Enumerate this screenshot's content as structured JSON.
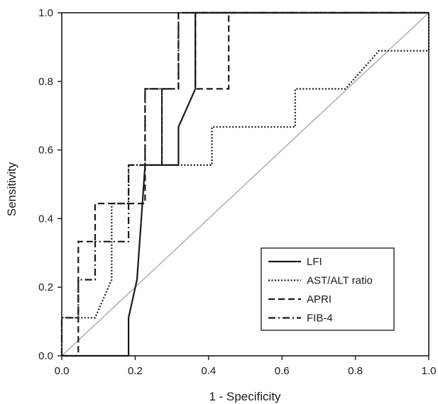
{
  "chart_data": {
    "type": "line",
    "title": "",
    "xlabel": "1 - Specificity",
    "ylabel": "Sensitivity",
    "xlim": [
      0,
      1
    ],
    "ylim": [
      0,
      1
    ],
    "xticks": [
      "0.0",
      "0.2",
      "0.4",
      "0.6",
      "0.8",
      "1.0"
    ],
    "yticks": [
      "0.0",
      "0.2",
      "0.4",
      "0.6",
      "0.8",
      "1.0"
    ],
    "grid": false,
    "legend_position": "bottom-right",
    "reference_line": {
      "from": [
        0,
        0
      ],
      "to": [
        1,
        1
      ],
      "color": "#aaaaaa"
    },
    "series": [
      {
        "name": "LFI",
        "style": "solid",
        "color": "#1a1a1a",
        "points": [
          [
            0,
            0
          ],
          [
            0.182,
            0
          ],
          [
            0.182,
            0.111
          ],
          [
            0.205,
            0.222
          ],
          [
            0.227,
            0.556
          ],
          [
            0.318,
            0.556
          ],
          [
            0.318,
            0.667
          ],
          [
            0.364,
            0.778
          ],
          [
            0.364,
            1
          ],
          [
            1,
            1
          ]
        ]
      },
      {
        "name": "AST/ALT ratio",
        "style": "dotted",
        "color": "#1a1a1a",
        "points": [
          [
            0,
            0
          ],
          [
            0,
            0.111
          ],
          [
            0.091,
            0.111
          ],
          [
            0.136,
            0.222
          ],
          [
            0.136,
            0.444
          ],
          [
            0.182,
            0.444
          ],
          [
            0.182,
            0.556
          ],
          [
            0.364,
            0.556
          ],
          [
            0.409,
            0.556
          ],
          [
            0.409,
            0.667
          ],
          [
            0.636,
            0.667
          ],
          [
            0.636,
            0.778
          ],
          [
            0.773,
            0.778
          ],
          [
            0.864,
            0.889
          ],
          [
            1,
            0.889
          ],
          [
            1,
            1
          ]
        ]
      },
      {
        "name": "APRI",
        "style": "dashed",
        "color": "#1a1a1a",
        "points": [
          [
            0,
            0
          ],
          [
            0.045,
            0
          ],
          [
            0.045,
            0.333
          ],
          [
            0.091,
            0.333
          ],
          [
            0.091,
            0.444
          ],
          [
            0.227,
            0.444
          ],
          [
            0.227,
            0.556
          ],
          [
            0.227,
            0.778
          ],
          [
            0.273,
            0.778
          ],
          [
            0.273,
            0.556
          ],
          [
            0.273,
            0.778
          ],
          [
            0.318,
            0.778
          ],
          [
            0.318,
            1
          ],
          [
            0.455,
            1
          ],
          [
            0.455,
            0.778
          ],
          [
            0.364,
            0.778
          ],
          [
            0.364,
            1
          ],
          [
            1,
            1
          ]
        ]
      },
      {
        "name": "FIB-4",
        "style": "dashdot",
        "color": "#1a1a1a",
        "points": [
          [
            0,
            0
          ],
          [
            0,
            0.111
          ],
          [
            0.045,
            0.111
          ],
          [
            0.045,
            0.222
          ],
          [
            0.091,
            0.222
          ],
          [
            0.091,
            0.333
          ],
          [
            0.182,
            0.333
          ],
          [
            0.182,
            0.556
          ],
          [
            0.227,
            0.556
          ],
          [
            0.227,
            0.778
          ],
          [
            0.318,
            0.778
          ],
          [
            0.318,
            1
          ],
          [
            1,
            1
          ]
        ]
      }
    ]
  }
}
